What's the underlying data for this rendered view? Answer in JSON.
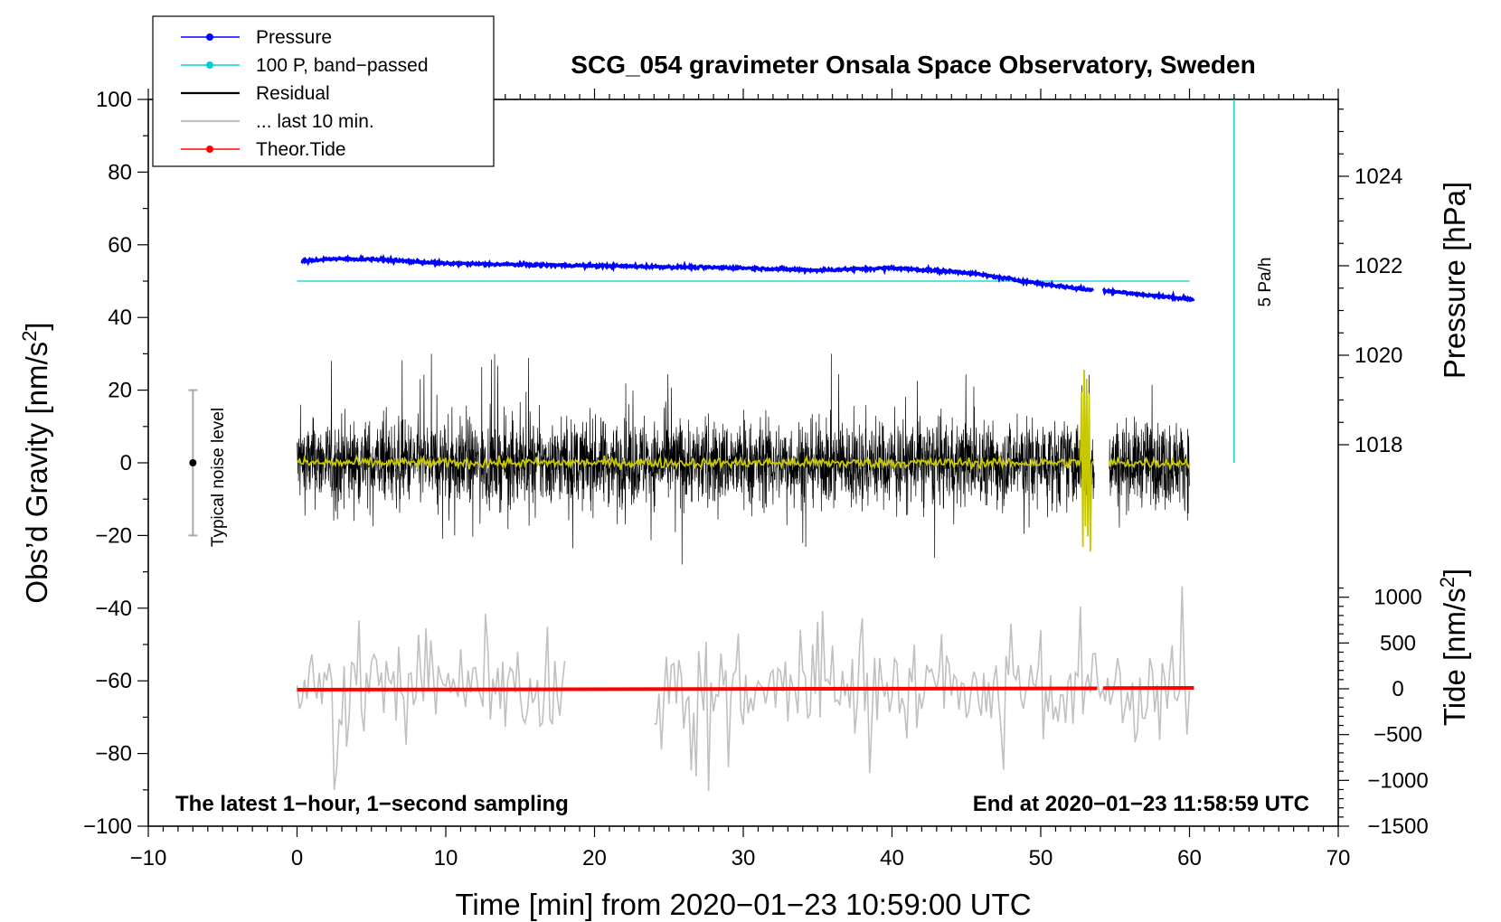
{
  "chart_data": {
    "type": "line",
    "title": "SCG_054 gravimeter Onsala Space Observatory, Sweden",
    "xlabel": "Time [min] from 2020−01−23 10:59:00 UTC",
    "ylabel_left": "Obs’d Gravity [nm/s",
    "ylabel_left_sup": "2",
    "ylabel_left_close": "]",
    "ylabel_pressure": "Pressure [hPa]",
    "ylabel_tide": "Tide [nm/s",
    "ylabel_tide_sup": "2",
    "ylabel_tide_close": "]",
    "xlim": [
      -10,
      70
    ],
    "ylim": [
      -100,
      100
    ],
    "pressure_range": [
      1015,
      1026
    ],
    "tide_range": [
      -1500,
      1500
    ],
    "x_ticks": [
      "−10",
      "0",
      "10",
      "20",
      "30",
      "40",
      "50",
      "60",
      "70"
    ],
    "y_ticks": [
      "−100",
      "−80",
      "−60",
      "−40",
      "−20",
      "0",
      "20",
      "40",
      "60",
      "80",
      "100"
    ],
    "pressure_ticks": [
      "1018",
      "1020",
      "1022",
      "1024"
    ],
    "tide_ticks": [
      "−1500",
      "−1000",
      "−500",
      "0",
      "500",
      "1000"
    ],
    "legend": [
      {
        "label": "Pressure",
        "color": "#0000ff",
        "marker": true
      },
      {
        "label": "100 P, band−passed",
        "color": "#00d0d0",
        "marker": true
      },
      {
        "label": "Residual",
        "color": "#000000",
        "marker": false
      },
      {
        "label": "... last 10 min.",
        "color": "#c0c0c0",
        "marker": false
      },
      {
        "label": "Theor.Tide",
        "color": "#ff0000",
        "marker": true
      }
    ],
    "annotations": {
      "bottom_left": "The latest 1−hour, 1−second sampling",
      "bottom_right": "End at 2020−01−23 11:58:59 UTC",
      "rate_label": "5 Pa/h",
      "noise_label": "Typical noise level"
    },
    "noise_bar": {
      "x": -7,
      "center": 0,
      "low": -20,
      "high": 20
    },
    "rate_bar": {
      "x": 63,
      "from": 0,
      "to": 100
    },
    "series": [
      {
        "name": "Pressure",
        "axis": "pressure",
        "color": "#0000ff",
        "gap": [
          53.5,
          54.2
        ],
        "points": [
          [
            0.3,
            1022.1
          ],
          [
            2,
            1022.15
          ],
          [
            5,
            1022.15
          ],
          [
            10,
            1022.05
          ],
          [
            20,
            1022.0
          ],
          [
            30,
            1021.95
          ],
          [
            35,
            1021.9
          ],
          [
            40,
            1021.95
          ],
          [
            45,
            1021.85
          ],
          [
            50,
            1021.6
          ],
          [
            53.5,
            1021.45
          ],
          [
            54.2,
            1021.45
          ],
          [
            57,
            1021.35
          ],
          [
            60.3,
            1021.25
          ]
        ]
      },
      {
        "name": "100 P, band−passed",
        "axis": "gravity",
        "color": "#00d0d0",
        "points": [
          [
            0,
            50
          ],
          [
            60,
            50
          ]
        ]
      },
      {
        "name": "Residual",
        "axis": "gravity",
        "color": "#000000",
        "range": [
          0,
          60
        ],
        "gap": [
          53.6,
          54.6
        ],
        "amplitude": 11
      },
      {
        "name": "Residual smoothed",
        "axis": "gravity",
        "color": "#c8c800",
        "range": [
          0,
          60
        ],
        "gap": [
          53.6,
          54.6
        ],
        "burst": [
          52.7,
          53.4
        ]
      },
      {
        "name": "... last 10 min.",
        "axis": "gravity",
        "color": "#c0c0c0",
        "segments": [
          [
            0,
            18
          ],
          [
            24,
            60
          ]
        ],
        "center": -62
      },
      {
        "name": "Theor.Tide",
        "axis": "tide",
        "color": "#ff0000",
        "gap": [
          53.8,
          54.2
        ],
        "points": [
          [
            0,
            -10
          ],
          [
            30,
            0
          ],
          [
            53.8,
            5
          ],
          [
            54.2,
            8
          ],
          [
            60.3,
            10
          ]
        ]
      }
    ]
  }
}
